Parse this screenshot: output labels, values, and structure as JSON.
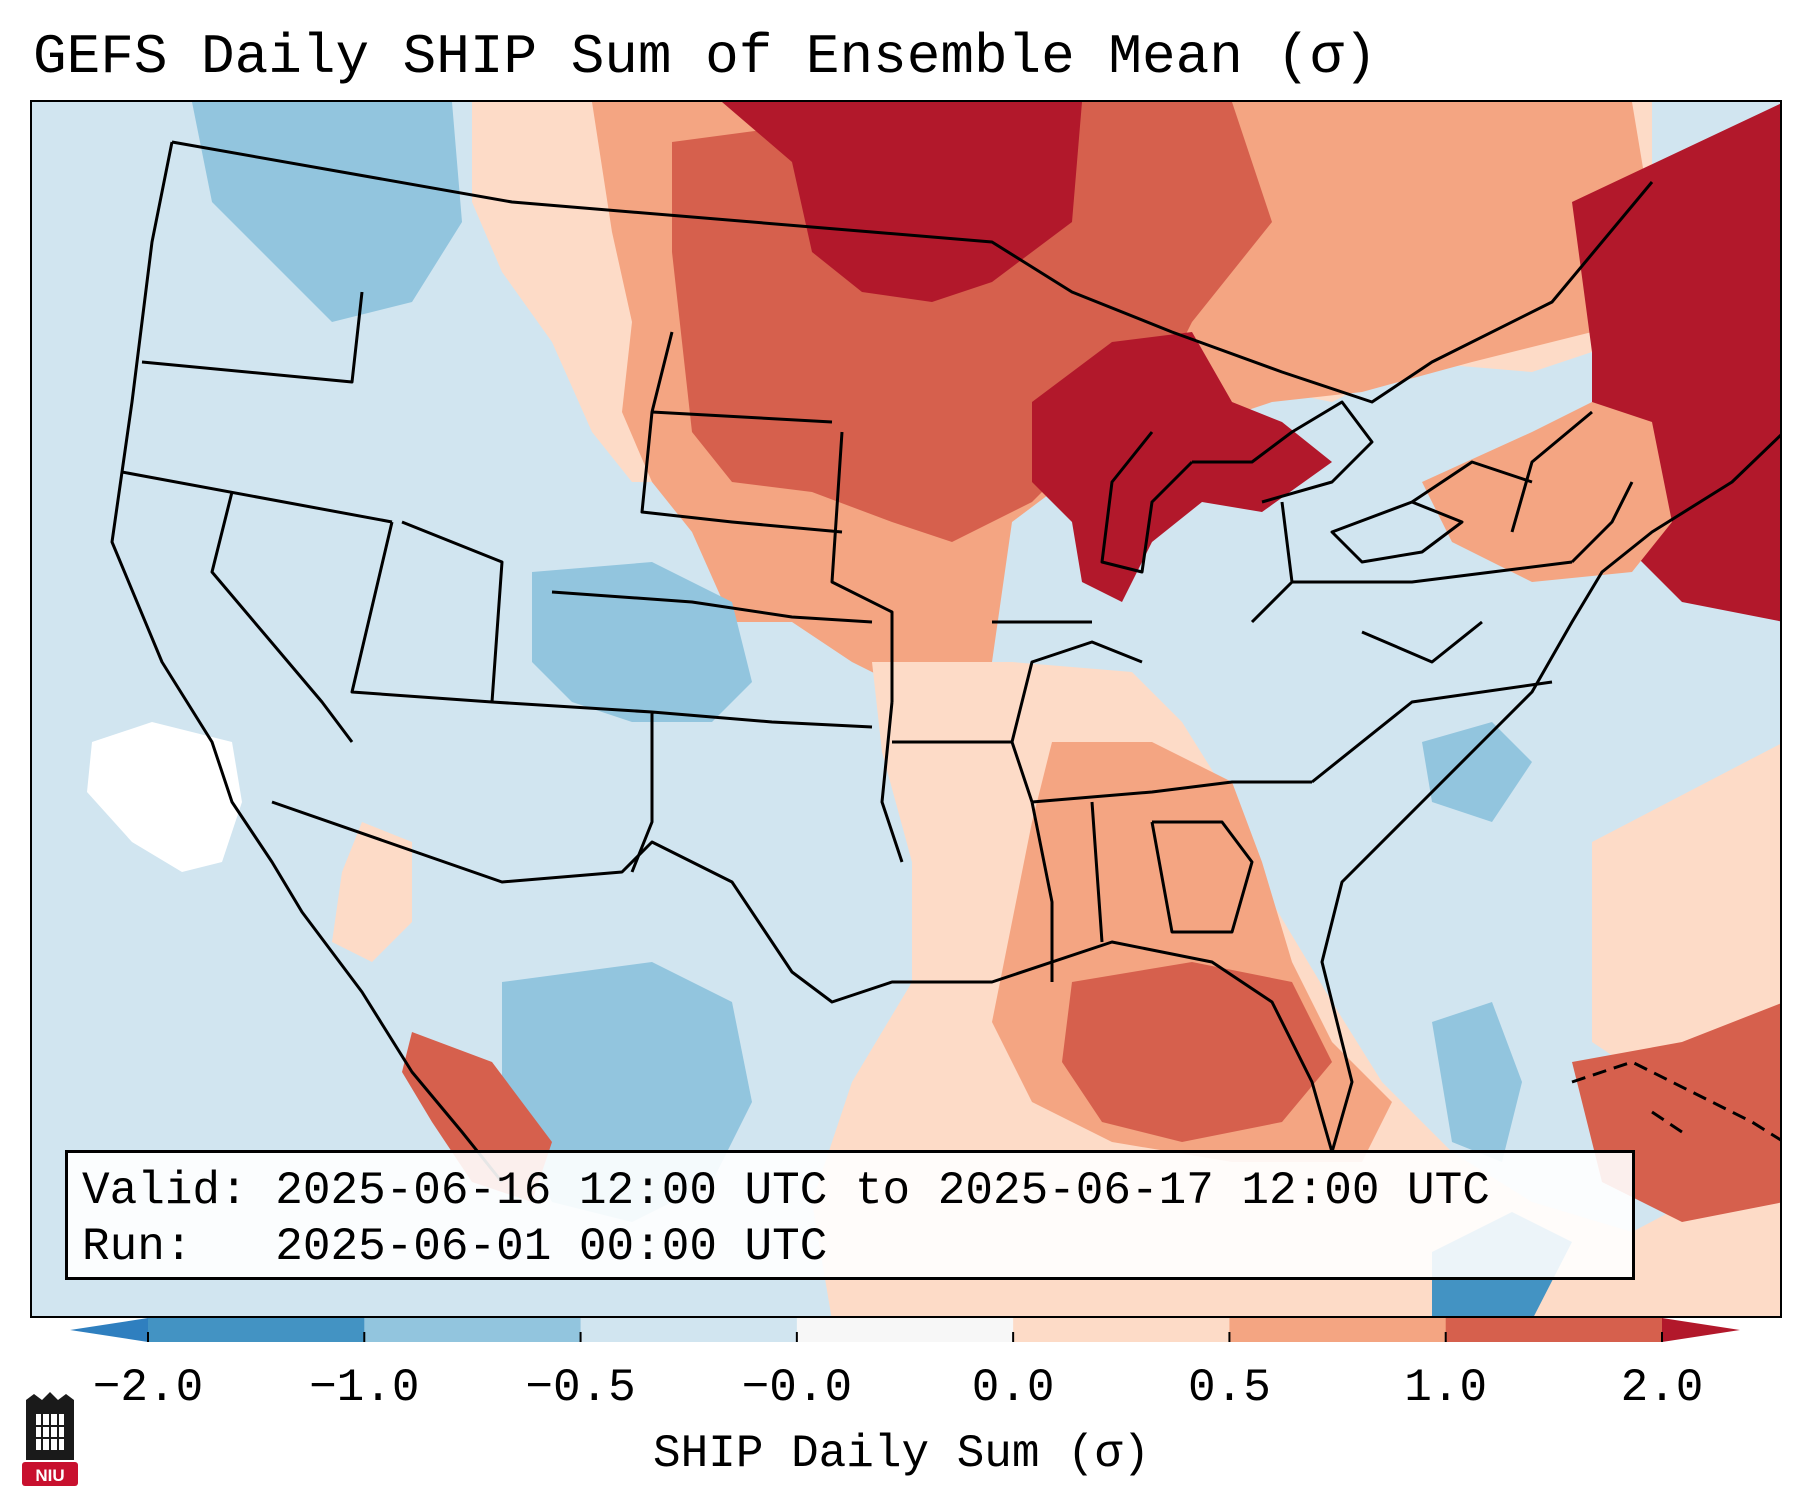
{
  "title": "GEFS Daily SHIP Sum of Ensemble Mean (σ)",
  "info": {
    "valid_label": "Valid:",
    "valid_text": "2025-06-16 12:00 UTC to 2025-06-17 12:00 UTC",
    "run_label": "Run:",
    "run_text": "2025-06-01 00:00 UTC"
  },
  "colorbar": {
    "label": "SHIP Daily Sum (σ)",
    "ticks": [
      "−2.0",
      "−1.0",
      "−0.5",
      "−0.0",
      "0.0",
      "0.5",
      "1.0",
      "2.0"
    ],
    "colors": {
      "below_min": "#2f7fbf",
      "bins": [
        "#4393c3",
        "#92c5de",
        "#d1e5f0",
        "#f7f7f7",
        "#fddbc7",
        "#f4a582",
        "#d6604d"
      ],
      "above_max": "#b2182b"
    }
  },
  "map": {
    "ocean_color": "#d1e5f0",
    "border_color": "#000000"
  },
  "logo": {
    "text": "NIU",
    "color": "#c8102e"
  }
}
